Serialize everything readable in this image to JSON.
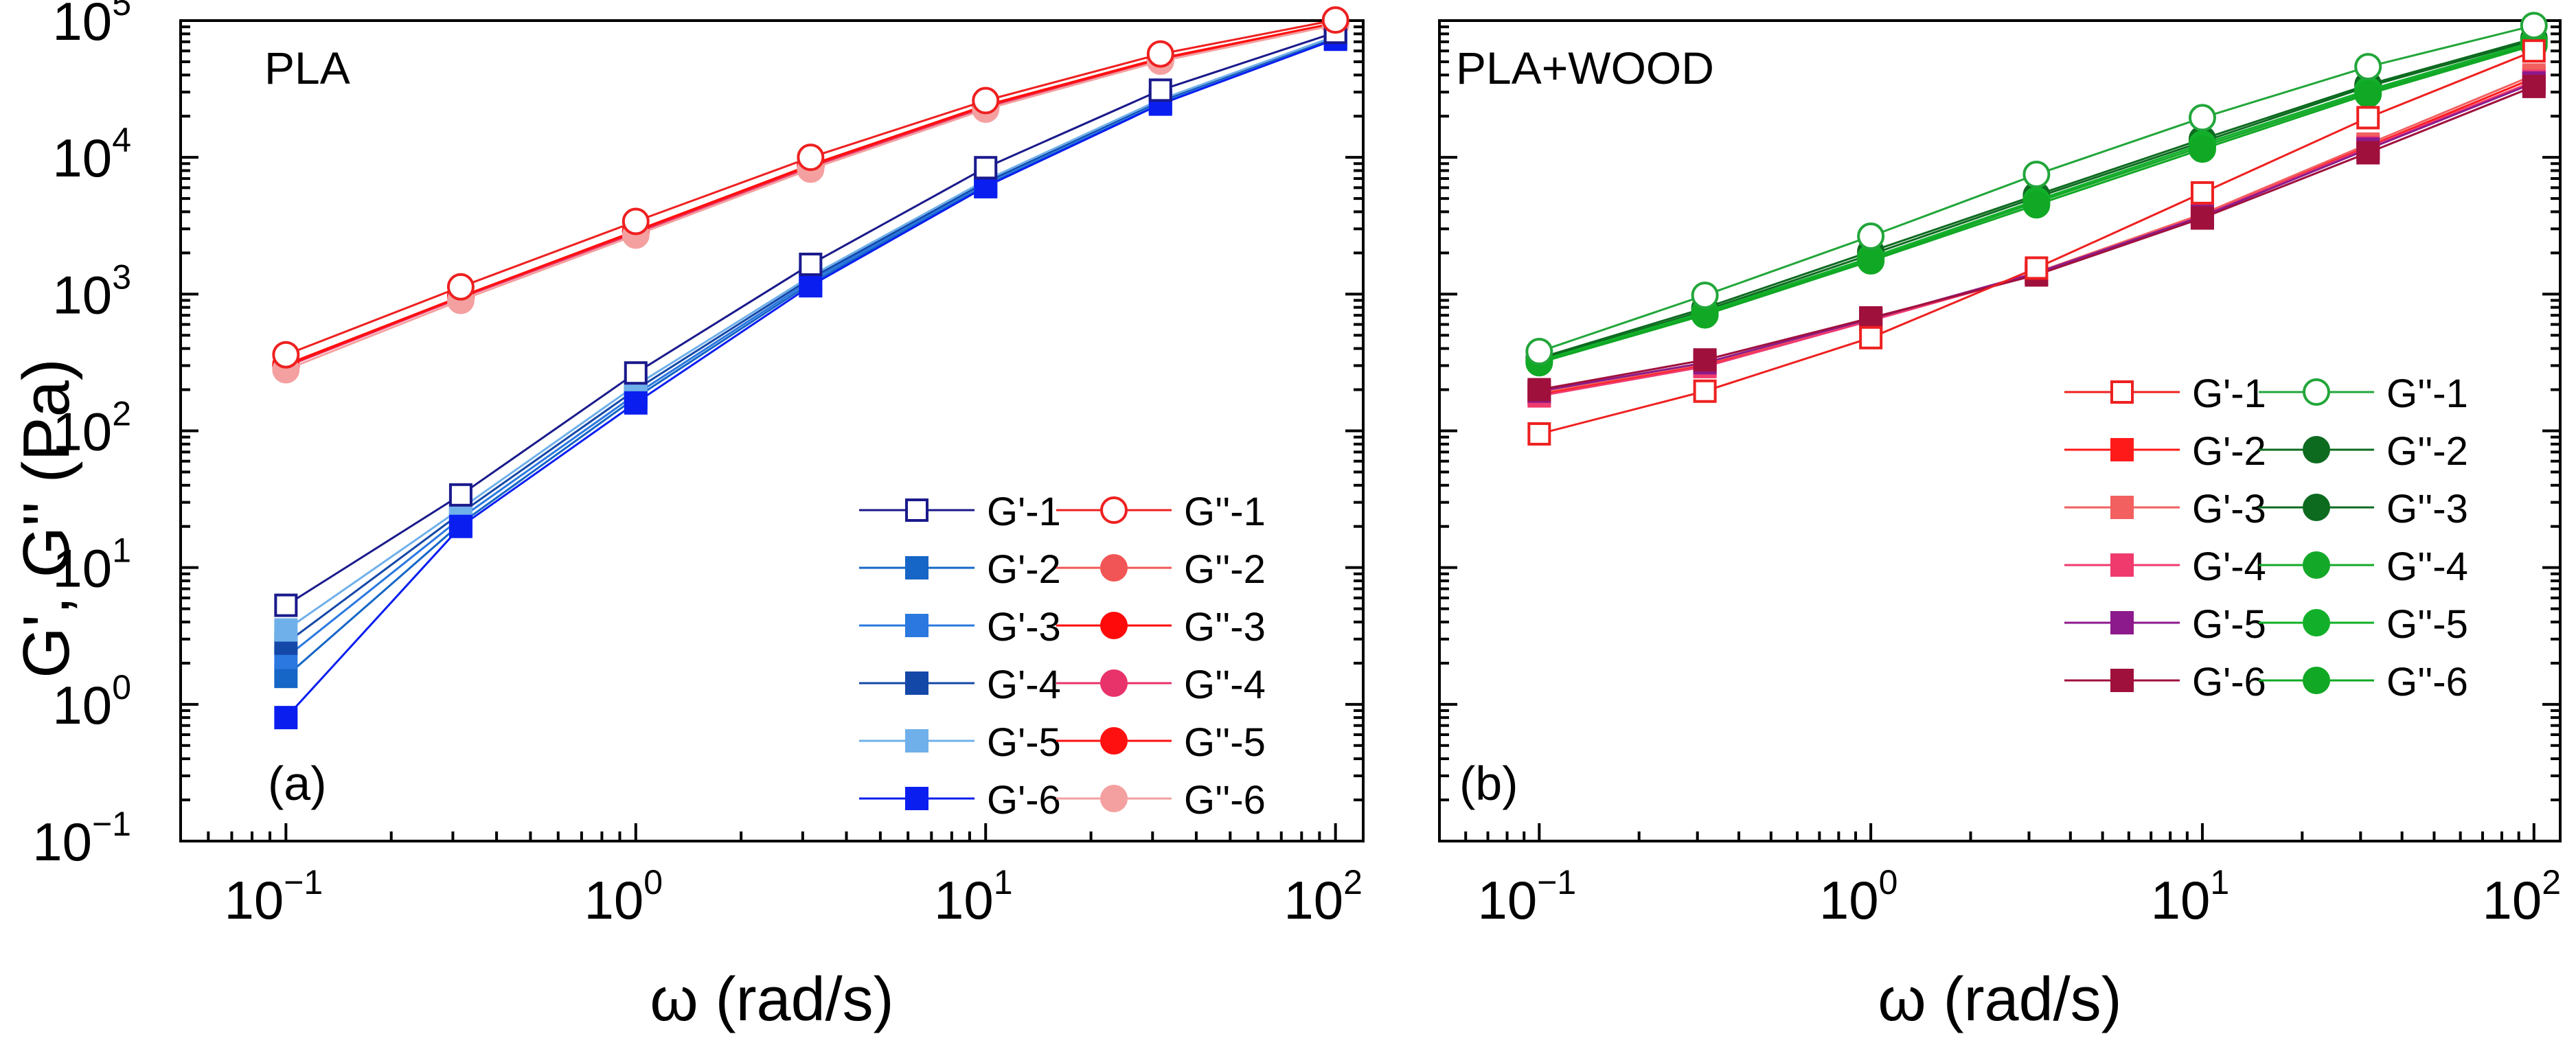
{
  "y_axis_label": "G', G'' (Pa)",
  "chart_data": [
    {
      "type": "line",
      "panel": "(a)",
      "title": "PLA",
      "xlabel": "ω (rad/s)",
      "ylabel": "G', G'' (Pa)",
      "xscale": "log",
      "yscale": "log",
      "xlim": [
        0.05,
        120
      ],
      "ylim": [
        0.1,
        100000
      ],
      "x_ticks": [
        {
          "value": 0.1,
          "base": "10",
          "exp": "−1"
        },
        {
          "value": 1,
          "base": "10",
          "exp": "0"
        },
        {
          "value": 10,
          "base": "10",
          "exp": "1"
        },
        {
          "value": 100,
          "base": "10",
          "exp": "2"
        }
      ],
      "y_ticks": [
        {
          "value": 0.1,
          "base": "10",
          "exp": "−1"
        },
        {
          "value": 1,
          "base": "10",
          "exp": "0"
        },
        {
          "value": 10,
          "base": "10",
          "exp": "1"
        },
        {
          "value": 100,
          "base": "10",
          "exp": "2"
        },
        {
          "value": 1000,
          "base": "10",
          "exp": "3"
        },
        {
          "value": 10000,
          "base": "10",
          "exp": "4"
        },
        {
          "value": 100000,
          "base": "10",
          "exp": "5"
        }
      ],
      "legend_position": "bottom-right",
      "legend_columns": 2,
      "x": [
        0.1,
        0.316,
        1,
        3.16,
        10,
        31.6,
        100
      ],
      "series": [
        {
          "name": "G'-1",
          "color": "#1a1a8c",
          "marker": "square",
          "filled": false,
          "values": [
            5.3,
            34,
            265,
            1650,
            8400,
            31000,
            82000
          ]
        },
        {
          "name": "G'-2",
          "color": "#1566c6",
          "marker": "square",
          "filled": true,
          "values": [
            1.6,
            21,
            175,
            1200,
            6200,
            25000,
            74000
          ]
        },
        {
          "name": "G'-3",
          "color": "#2a78e0",
          "marker": "square",
          "filled": true,
          "values": [
            2.2,
            23,
            185,
            1250,
            6400,
            25500,
            75000
          ]
        },
        {
          "name": "G'-4",
          "color": "#1448a8",
          "marker": "square",
          "filled": true,
          "values": [
            2.8,
            25,
            200,
            1300,
            6600,
            26000,
            76000
          ]
        },
        {
          "name": "G'-5",
          "color": "#6fb0ea",
          "marker": "square",
          "filled": true,
          "values": [
            3.5,
            27,
            215,
            1350,
            6800,
            26500,
            77000
          ]
        },
        {
          "name": "G'-6",
          "color": "#0a1ef0",
          "marker": "square",
          "filled": true,
          "values": [
            0.8,
            20,
            160,
            1150,
            6100,
            24500,
            73000
          ]
        },
        {
          "name": "G''-1",
          "color": "#ee2020",
          "marker": "circle",
          "filled": false,
          "values": [
            360,
            1130,
            3400,
            10000,
            26000,
            57000,
            101000
          ]
        },
        {
          "name": "G''-2",
          "color": "#f25555",
          "marker": "circle",
          "filled": true,
          "values": [
            300,
            950,
            2850,
            8600,
            23500,
            52000,
            95000
          ]
        },
        {
          "name": "G''-3",
          "color": "#ff0a0a",
          "marker": "circle",
          "filled": true,
          "values": [
            305,
            960,
            2900,
            8800,
            24000,
            53000,
            96000
          ]
        },
        {
          "name": "G''-4",
          "color": "#e8336a",
          "marker": "circle",
          "filled": true,
          "values": [
            295,
            940,
            2800,
            8500,
            23200,
            51500,
            94000
          ]
        },
        {
          "name": "G''-5",
          "color": "#ff1010",
          "marker": "circle",
          "filled": true,
          "values": [
            300,
            955,
            2870,
            8700,
            23800,
            52500,
            95500
          ]
        },
        {
          "name": "G''-6",
          "color": "#f4a0a0",
          "marker": "circle",
          "filled": true,
          "values": [
            280,
            900,
            2700,
            8200,
            22500,
            50500,
            93000
          ]
        }
      ]
    },
    {
      "type": "line",
      "panel": "(b)",
      "title": "PLA+WOOD",
      "xlabel": "ω (rad/s)",
      "ylabel": "G', G'' (Pa)",
      "xscale": "log",
      "yscale": "log",
      "xlim": [
        0.05,
        120
      ],
      "ylim": [
        0.1,
        100000
      ],
      "x_ticks": [
        {
          "value": 0.1,
          "base": "10",
          "exp": "−1"
        },
        {
          "value": 1,
          "base": "10",
          "exp": "0"
        },
        {
          "value": 10,
          "base": "10",
          "exp": "1"
        },
        {
          "value": 100,
          "base": "10",
          "exp": "2"
        }
      ],
      "y_ticks": [],
      "legend_position": "right",
      "legend_columns": 2,
      "x": [
        0.1,
        0.316,
        1,
        3.16,
        10,
        31.6,
        100
      ],
      "series": [
        {
          "name": "G'-1",
          "color": "#ee2020",
          "marker": "square",
          "filled": false,
          "values": [
            95,
            195,
            480,
            1550,
            5500,
            19500,
            60000
          ]
        },
        {
          "name": "G'-2",
          "color": "#ff1a1a",
          "marker": "square",
          "filled": true,
          "values": [
            185,
            300,
            650,
            1420,
            3800,
            12000,
            38000
          ]
        },
        {
          "name": "G'-3",
          "color": "#f26060",
          "marker": "square",
          "filled": true,
          "values": [
            190,
            310,
            655,
            1440,
            3850,
            12500,
            40000
          ]
        },
        {
          "name": "G'-4",
          "color": "#f03a6e",
          "marker": "square",
          "filled": true,
          "values": [
            180,
            295,
            640,
            1400,
            3750,
            11800,
            36000
          ]
        },
        {
          "name": "G'-5",
          "color": "#8c1a8c",
          "marker": "square",
          "filled": true,
          "values": [
            195,
            315,
            660,
            1430,
            3700,
            11500,
            35000
          ]
        },
        {
          "name": "G'-6",
          "color": "#a0103c",
          "marker": "square",
          "filled": true,
          "values": [
            200,
            330,
            670,
            1380,
            3600,
            10800,
            33000
          ]
        },
        {
          "name": "G''-1",
          "color": "#22a63a",
          "marker": "circle",
          "filled": false,
          "values": [
            380,
            980,
            2650,
            7500,
            19500,
            46000,
            92000
          ]
        },
        {
          "name": "G''-2",
          "color": "#0d6b20",
          "marker": "circle",
          "filled": true,
          "values": [
            330,
            760,
            1950,
            5100,
            13000,
            33000,
            72000
          ]
        },
        {
          "name": "G''-3",
          "color": "#0d6b20",
          "marker": "circle",
          "filled": true,
          "values": [
            340,
            790,
            2050,
            5300,
            13600,
            34000,
            74000
          ]
        },
        {
          "name": "G''-4",
          "color": "#14a828",
          "marker": "circle",
          "filled": true,
          "values": [
            320,
            720,
            1800,
            4700,
            12000,
            30000,
            68000
          ]
        },
        {
          "name": "G''-5",
          "color": "#12b02a",
          "marker": "circle",
          "filled": true,
          "values": [
            325,
            740,
            1850,
            4850,
            12500,
            31000,
            70000
          ]
        },
        {
          "name": "G''-6",
          "color": "#10a824",
          "marker": "circle",
          "filled": true,
          "values": [
            315,
            705,
            1750,
            4500,
            11500,
            29000,
            66000
          ]
        }
      ]
    }
  ]
}
